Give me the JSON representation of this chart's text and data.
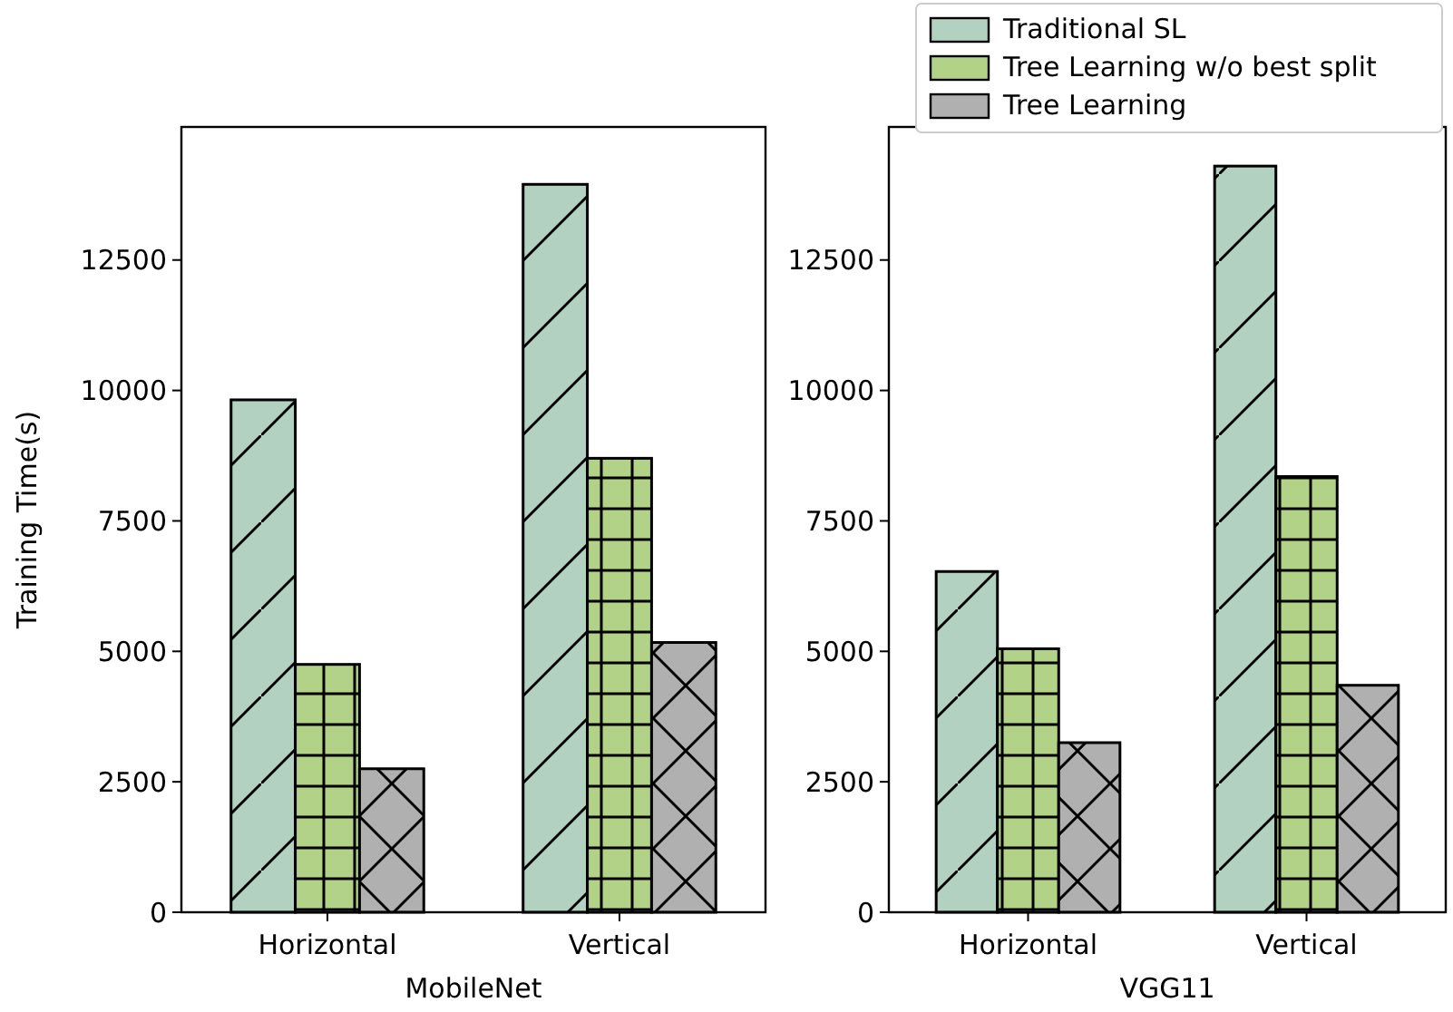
{
  "chart_data": [
    {
      "type": "bar",
      "xlabel": "MobileNet",
      "ylabel": "Training Time(s)",
      "categories": [
        "Horizontal",
        "Vertical"
      ],
      "series": [
        {
          "color": "#b3d1c1",
          "values": [
            9820,
            13950
          ]
        },
        {
          "color": "#b2d287",
          "values": [
            4750,
            8700
          ]
        },
        {
          "color": "#b0b0b0",
          "values": [
            2750,
            5170
          ]
        }
      ],
      "ylim": [
        0,
        15050
      ],
      "yticks": [
        0,
        2500,
        5000,
        7500,
        10000,
        12500
      ],
      "grid": false,
      "legend": false
    },
    {
      "type": "bar",
      "xlabel": "VGG11",
      "categories": [
        "Horizontal",
        "Vertical"
      ],
      "series": [
        {
          "name": "Traditional SL",
          "color": "#b3d1c1",
          "values": [
            6530,
            14300
          ]
        },
        {
          "name": "Tree Learning w/o best split",
          "color": "#b2d287",
          "values": [
            5050,
            8350
          ]
        },
        {
          "name": "Tree Learning",
          "color": "#b0b0b0",
          "values": [
            3250,
            4350
          ]
        }
      ],
      "ylim": [
        0,
        15050
      ],
      "yticks": [
        0,
        2500,
        5000,
        7500,
        10000,
        12500
      ],
      "grid": false,
      "legend": "top right"
    }
  ]
}
